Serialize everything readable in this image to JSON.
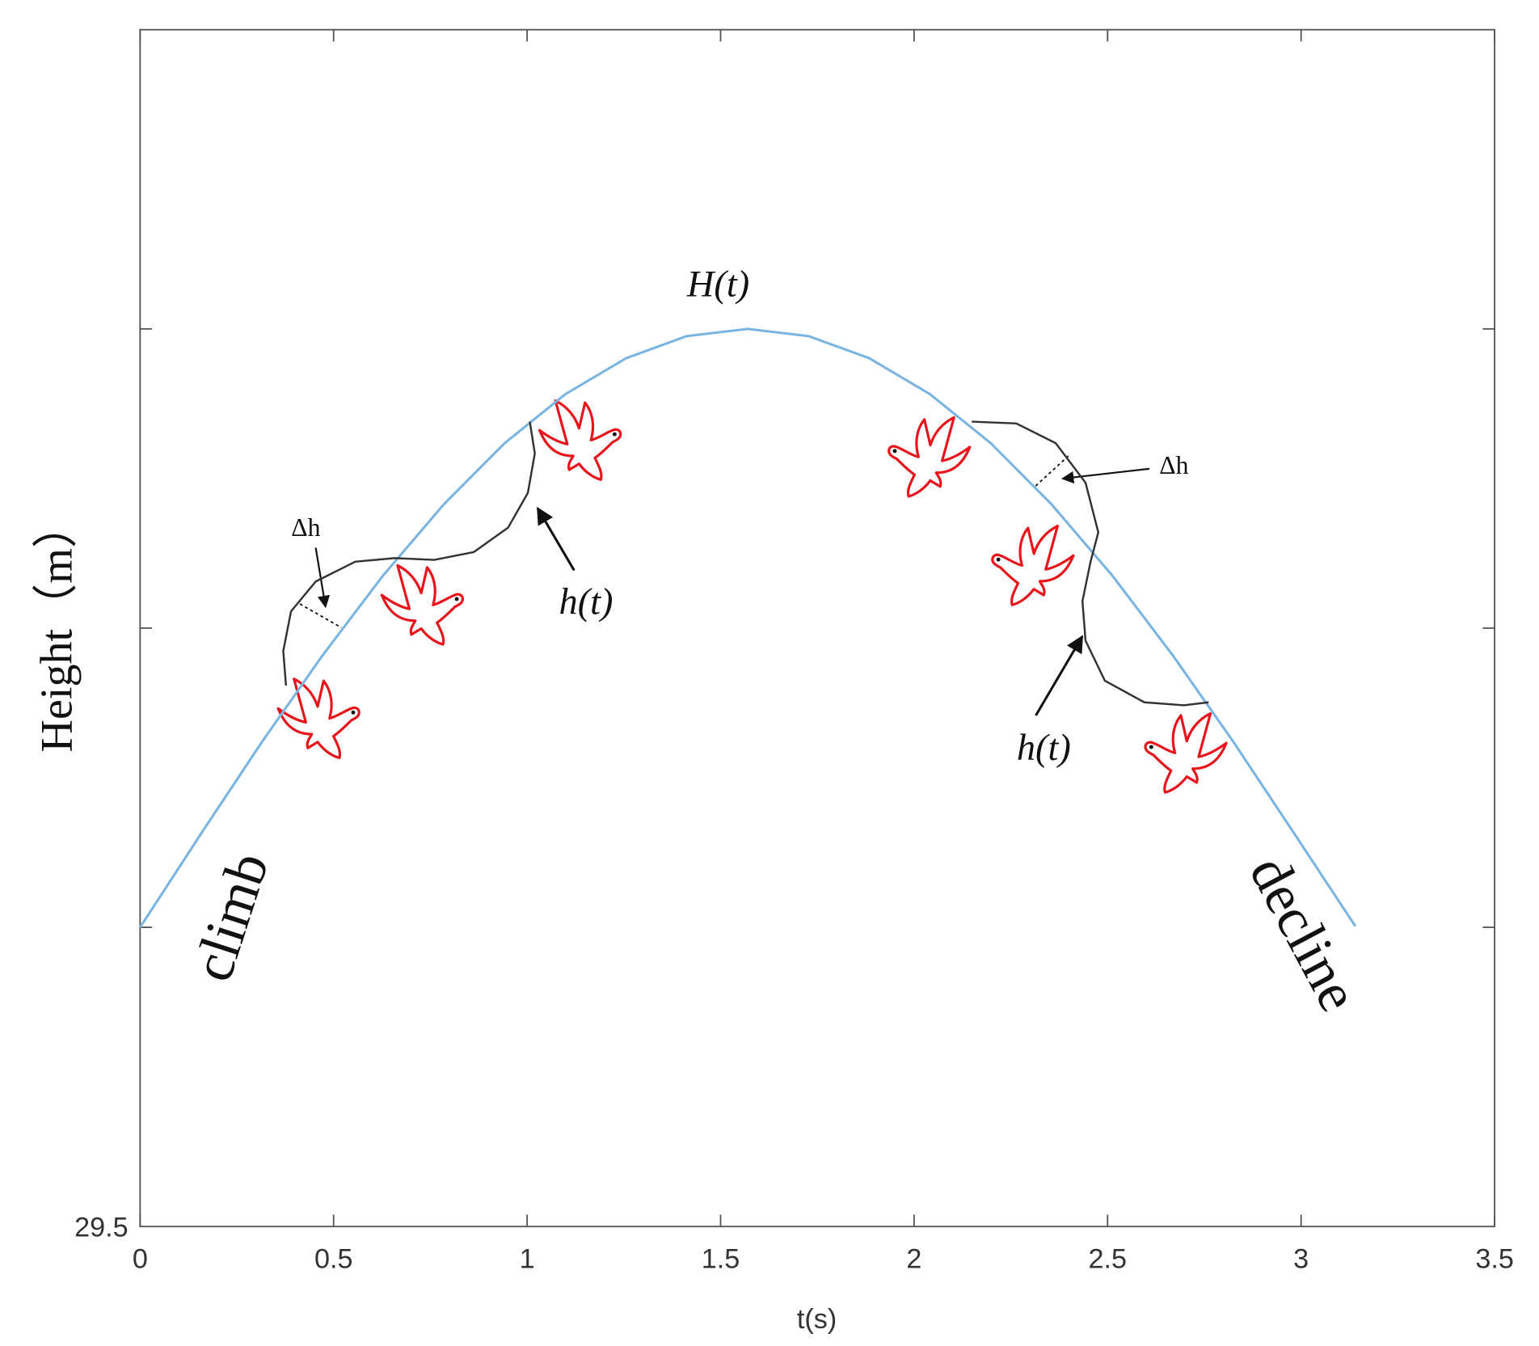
{
  "chart_data": {
    "type": "line",
    "xlabel": "t(s)",
    "ylabel": "Height（m）",
    "xlim": [
      0,
      3.5
    ],
    "xticks": [
      0,
      0.5,
      1,
      1.5,
      2,
      2.5,
      3,
      3.5
    ],
    "ylim": [
      29.5,
      31.5
    ],
    "yticks": [
      29.5
    ],
    "ytick_marks": [
      30,
      30.5,
      31
    ],
    "series": [
      {
        "name": "H(t)",
        "color": "#7ab4e0",
        "x": [
          0,
          0.157,
          0.314,
          0.471,
          0.628,
          0.785,
          0.942,
          1.099,
          1.256,
          1.413,
          1.57,
          1.727,
          1.884,
          2.041,
          2.198,
          2.355,
          2.512,
          2.669,
          2.826,
          2.983,
          3.14
        ],
        "values": [
          30,
          30.156,
          30.309,
          30.454,
          30.588,
          30.707,
          30.809,
          30.891,
          30.951,
          30.988,
          31,
          30.988,
          30.951,
          30.891,
          30.809,
          30.707,
          30.588,
          30.454,
          30.309,
          30.156,
          30.002
        ]
      },
      {
        "name": "h(t)",
        "color": "#333333",
        "x": [
          0.377,
          0.37,
          0.39,
          0.454,
          0.556,
          0.658,
          0.76,
          0.862,
          0.951,
          1.002,
          1.02,
          1.007
        ],
        "values": [
          30.404,
          30.462,
          30.528,
          30.578,
          30.611,
          30.617,
          30.614,
          30.627,
          30.668,
          30.726,
          30.792,
          30.845
        ]
      },
      {
        "name": "h(t)",
        "color": "#333333",
        "x": [
          2.149,
          2.264,
          2.366,
          2.443,
          2.476,
          2.456,
          2.435,
          2.443,
          2.493,
          2.595,
          2.697,
          2.761
        ],
        "values": [
          30.845,
          30.842,
          30.809,
          30.743,
          30.66,
          30.611,
          30.545,
          30.479,
          30.412,
          30.376,
          30.371,
          30.376
        ]
      }
    ],
    "annotations": [
      "Δh",
      "Δh",
      "climb",
      "decline"
    ]
  }
}
